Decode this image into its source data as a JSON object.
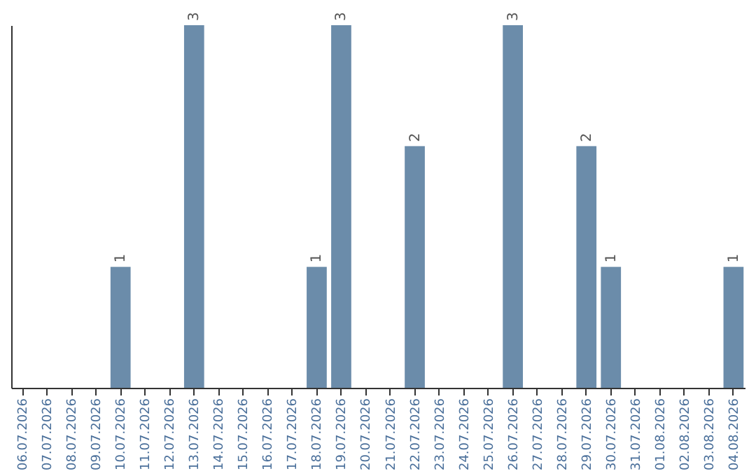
{
  "chart_data": {
    "type": "bar",
    "categories": [
      "06.07.2026",
      "07.07.2026",
      "08.07.2026",
      "09.07.2026",
      "10.07.2026",
      "11.07.2026",
      "12.07.2026",
      "13.07.2026",
      "14.07.2026",
      "15.07.2026",
      "16.07.2026",
      "17.07.2026",
      "18.07.2026",
      "19.07.2026",
      "20.07.2026",
      "21.07.2026",
      "22.07.2026",
      "23.07.2026",
      "24.07.2026",
      "25.07.2026",
      "26.07.2026",
      "27.07.2026",
      "28.07.2026",
      "29.07.2026",
      "30.07.2026",
      "31.07.2026",
      "01.08.2026",
      "02.08.2026",
      "03.08.2026",
      "04.08.2026"
    ],
    "values": [
      0,
      0,
      0,
      0,
      1,
      0,
      0,
      3,
      0,
      0,
      0,
      0,
      1,
      3,
      0,
      0,
      2,
      0,
      0,
      0,
      3,
      0,
      0,
      2,
      1,
      0,
      0,
      0,
      0,
      1
    ],
    "value_labels": [
      null,
      null,
      null,
      null,
      "1",
      null,
      null,
      "3",
      null,
      null,
      null,
      null,
      "1",
      "3",
      null,
      null,
      "2",
      null,
      null,
      null,
      "3",
      null,
      null,
      "2",
      "1",
      null,
      null,
      null,
      null,
      "1"
    ],
    "color": "#6b8caa",
    "ylim": [
      0,
      3
    ],
    "grid": false
  }
}
